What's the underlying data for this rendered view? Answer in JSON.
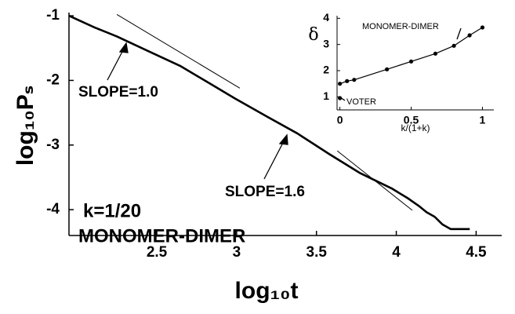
{
  "chart_data": [
    {
      "type": "line",
      "x_label": "log₁₀t",
      "y_label": "log₁₀Pₛ",
      "x": [
        1.95,
        2.11,
        2.25,
        2.45,
        2.65,
        2.82,
        2.99,
        3.19,
        3.38,
        3.58,
        3.77,
        3.97,
        4.07,
        4.14,
        4.19,
        4.24,
        4.29,
        4.34,
        4.46
      ],
      "values": [
        -1.0,
        -1.18,
        -1.32,
        -1.55,
        -1.78,
        -2.03,
        -2.28,
        -2.56,
        -2.82,
        -3.14,
        -3.43,
        -3.67,
        -3.82,
        -3.94,
        -4.04,
        -4.11,
        -4.23,
        -4.3,
        -4.3
      ],
      "color": "#000000",
      "xlim": [
        1.95,
        4.66
      ],
      "ylim": [
        -4.4,
        -0.95
      ],
      "xticks": [
        2.5,
        3,
        3.5,
        4,
        4.5
      ],
      "yticks": [
        -1,
        -2,
        -3,
        -4
      ],
      "reference_lines": [
        {
          "label": "SLOPE=1.0",
          "x": [
            2.25,
            3.02
          ],
          "y": [
            -0.98,
            -2.12
          ]
        },
        {
          "label": "SLOPE=1.6",
          "x": [
            3.63,
            4.1
          ],
          "y": [
            -3.09,
            -4.01
          ]
        }
      ],
      "annotations": [
        "k=1/20",
        "MONOMER-DIMER"
      ]
    },
    {
      "type": "line",
      "x_label": "k/(1+k)",
      "y_label": "δ",
      "xlim": [
        -0.02,
        1.08
      ],
      "ylim": [
        0.5,
        4.1
      ],
      "xticks": [
        0,
        0.5,
        1
      ],
      "yticks": [
        1,
        2,
        3,
        4
      ],
      "series": [
        {
          "name": "MONOMER-DIMER",
          "color": "#000000",
          "x": [
            0,
            0.05,
            0.1,
            0.33,
            0.5,
            0.67,
            0.8,
            0.91,
            1.0
          ],
          "values": [
            1.5,
            1.6,
            1.65,
            2.05,
            2.35,
            2.65,
            2.95,
            3.35,
            3.65
          ]
        },
        {
          "name": "VOTER",
          "color": "#000000",
          "x": [
            0
          ],
          "values": [
            0.95
          ]
        }
      ]
    }
  ]
}
